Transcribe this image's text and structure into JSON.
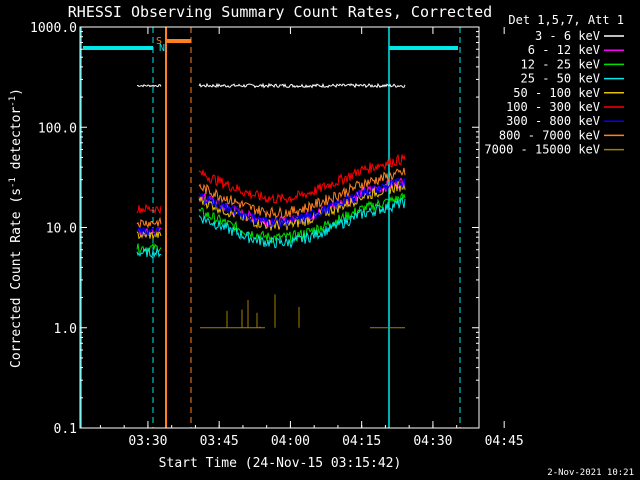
{
  "chart_data": {
    "type": "line",
    "title": "RHESSI Observing Summary Count Rates, Corrected",
    "xlabel": "Start Time (24-Nov-15 03:15:42)",
    "ylabel_main": "Corrected Count Rate (s",
    "ylabel_sup": "-1",
    "ylabel_end": " detector",
    "ylabel_sup2": "-1",
    "ylabel_close": ")",
    "yscale": "log",
    "ylim": [
      0.1,
      1000
    ],
    "xlim_minutes": [
      0,
      84
    ],
    "y_ticks": [
      {
        "value": 0.1,
        "label": "0.1"
      },
      {
        "value": 1,
        "label": "1.0"
      },
      {
        "value": 10,
        "label": "10.0"
      },
      {
        "value": 100,
        "label": "100.0"
      },
      {
        "value": 1000,
        "label": "1000.0"
      }
    ],
    "x_ticks": [
      {
        "minute": 14.3,
        "label": "03:30"
      },
      {
        "minute": 29.3,
        "label": "03:45"
      },
      {
        "minute": 44.3,
        "label": "04:00"
      },
      {
        "minute": 59.3,
        "label": "04:15"
      },
      {
        "minute": 74.3,
        "label": "04:30"
      },
      {
        "minute": 89.3,
        "label": "04:45"
      }
    ],
    "legend_title": "Det 1,5,7, Att 1",
    "series": [
      {
        "name": "3 - 6 keV",
        "color": "#ffffff",
        "label_color": "#ffffff",
        "level": 260,
        "shape": "flat"
      },
      {
        "name": "6 - 12 keV",
        "color": "#ff00ff",
        "level": 13,
        "shape": "arc"
      },
      {
        "name": "12 - 25 keV",
        "color": "#00e000",
        "level": 9,
        "shape": "arc"
      },
      {
        "name": "25 - 50 keV",
        "color": "#00e8e8",
        "level": 8,
        "shape": "arc"
      },
      {
        "name": "50 - 100 keV",
        "color": "#e8c000",
        "level": 12,
        "shape": "arc"
      },
      {
        "name": "100 - 300 keV",
        "color": "#ff0000",
        "level": 22,
        "shape": "arc"
      },
      {
        "name": "300 - 800 keV",
        "color": "#0000ff",
        "level": 13,
        "shape": "arc"
      },
      {
        "name": "800 - 7000 keV",
        "color": "#ff8020",
        "level": 16,
        "shape": "arc"
      },
      {
        "name": "7000 - 15000 keV",
        "color": "#a08000",
        "level": 1,
        "shape": "sparse"
      }
    ],
    "flags": {
      "saa": "S",
      "night": "N"
    },
    "timestamp": "2-Nov-2021 10:21"
  }
}
